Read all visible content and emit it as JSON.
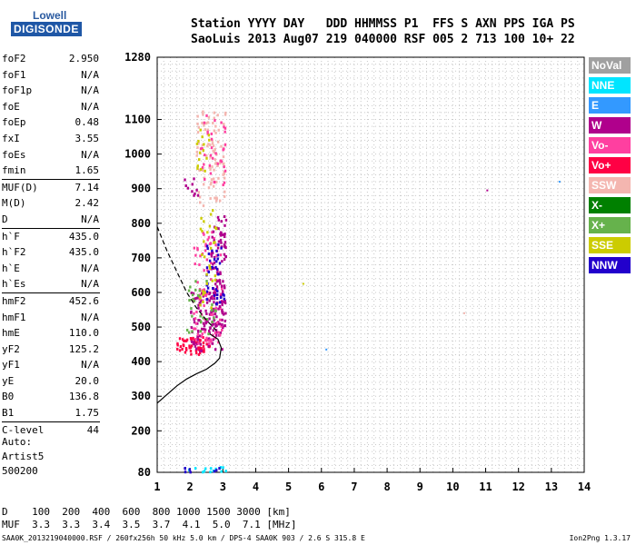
{
  "logo": {
    "line1": "Lowell",
    "line2": "DIGISONDE"
  },
  "header": {
    "line1": "Station YYYY DAY   DDD HHMMSS P1  FFS S AXN PPS IGA PS",
    "line2": "SaoLuis 2013 Aug07 219 040000 RSF 005 2 713 100 10+ 22"
  },
  "params_group1": [
    {
      "k": "foF2",
      "v": "2.950"
    },
    {
      "k": "foF1",
      "v": "N/A"
    },
    {
      "k": "foF1p",
      "v": "N/A"
    },
    {
      "k": "foE",
      "v": "N/A"
    },
    {
      "k": "foEp",
      "v": "0.48"
    },
    {
      "k": "fxI",
      "v": "3.55"
    },
    {
      "k": "foEs",
      "v": "N/A"
    },
    {
      "k": "fmin",
      "v": "1.65"
    }
  ],
  "params_group2": [
    {
      "k": "MUF(D)",
      "v": "7.14"
    },
    {
      "k": "M(D)",
      "v": "2.42"
    },
    {
      "k": "D",
      "v": "N/A"
    }
  ],
  "params_group3": [
    {
      "k": "h`F",
      "v": "435.0"
    },
    {
      "k": "h`F2",
      "v": "435.0"
    },
    {
      "k": "h`E",
      "v": "N/A"
    },
    {
      "k": "h`Es",
      "v": "N/A"
    }
  ],
  "params_group4": [
    {
      "k": "hmF2",
      "v": "452.6"
    },
    {
      "k": "hmF1",
      "v": "N/A"
    },
    {
      "k": "hmE",
      "v": "110.0"
    },
    {
      "k": "yF2",
      "v": "125.2"
    },
    {
      "k": "yF1",
      "v": "N/A"
    },
    {
      "k": "yE",
      "v": "20.0"
    },
    {
      "k": "B0",
      "v": "136.8"
    },
    {
      "k": "B1",
      "v": "1.75"
    }
  ],
  "params_group5": [
    {
      "k": "C-level",
      "v": "44"
    }
  ],
  "auto": {
    "line1": "Auto:",
    "line2": "Artist5",
    "line3": "500200"
  },
  "legend": [
    {
      "label": "NoVal",
      "color": "#a0a0a0"
    },
    {
      "label": "NNE",
      "color": "#00e5ff"
    },
    {
      "label": "E",
      "color": "#3399ff"
    },
    {
      "label": "W",
      "color": "#b0008c"
    },
    {
      "label": "Vo-",
      "color": "#ff3fa0"
    },
    {
      "label": "Vo+",
      "color": "#ff0044"
    },
    {
      "label": "SSW",
      "color": "#f4b6b0"
    },
    {
      "label": "X-",
      "color": "#008000"
    },
    {
      "label": "X+",
      "color": "#66b24c"
    },
    {
      "label": "SSE",
      "color": "#cccc00"
    },
    {
      "label": "NNW",
      "color": "#2200cc"
    }
  ],
  "bottom": {
    "d_row": "D    100  200  400  600  800 1000 1500 3000 [km]",
    "muf_row": "MUF  3.3  3.3  3.4  3.5  3.7  4.1  5.0  7.1 [MHz]"
  },
  "footer": {
    "text": "SAA0K_2013219040000.RSF / 260fx256h 50 kHz 5.0 km / DPS-4 SAA0K 903 / 2.6 S 315.8 E",
    "version": "Ion2Png 1.3.17"
  },
  "chart_data": {
    "type": "scatter",
    "xlim": [
      1,
      14
    ],
    "ylim": [
      80,
      1280
    ],
    "x_ticks": [
      1,
      2,
      3,
      4,
      5,
      6,
      7,
      8,
      9,
      10,
      11,
      12,
      13,
      14
    ],
    "y_ticks": [
      80,
      200,
      300,
      400,
      500,
      600,
      700,
      800,
      900,
      1000,
      1100,
      1280
    ],
    "grid": true,
    "profile_curve": [
      [
        1.0,
        280
      ],
      [
        1.3,
        305
      ],
      [
        1.6,
        330
      ],
      [
        1.9,
        350
      ],
      [
        2.2,
        365
      ],
      [
        2.5,
        378
      ],
      [
        2.75,
        395
      ],
      [
        2.9,
        410
      ],
      [
        2.95,
        440
      ],
      [
        2.85,
        465
      ],
      [
        2.6,
        480
      ]
    ],
    "dashed_curve": [
      [
        1.0,
        790
      ],
      [
        1.3,
        720
      ],
      [
        1.6,
        660
      ],
      [
        1.9,
        600
      ],
      [
        2.2,
        555
      ],
      [
        2.5,
        520
      ],
      [
        2.8,
        490
      ]
    ],
    "clusters": [
      {
        "color": "#ff0044",
        "x": [
          1.6,
          2.6
        ],
        "y": [
          420,
          470
        ],
        "n": 60
      },
      {
        "color": "#b0008c",
        "x": [
          2.0,
          3.0
        ],
        "y": [
          430,
          600
        ],
        "n": 110
      },
      {
        "color": "#ff3fa0",
        "x": [
          2.1,
          3.0
        ],
        "y": [
          450,
          780
        ],
        "n": 90
      },
      {
        "color": "#b0008c",
        "x": [
          2.6,
          3.1
        ],
        "y": [
          500,
          820
        ],
        "n": 90
      },
      {
        "color": "#2200cc",
        "x": [
          2.5,
          3.1
        ],
        "y": [
          560,
          750
        ],
        "n": 40
      },
      {
        "color": "#66b24c",
        "x": [
          1.9,
          2.8
        ],
        "y": [
          480,
          650
        ],
        "n": 30
      },
      {
        "color": "#cccc00",
        "x": [
          2.3,
          2.8
        ],
        "y": [
          550,
          850
        ],
        "n": 30
      },
      {
        "color": "#f4b6b0",
        "x": [
          2.2,
          3.1
        ],
        "y": [
          850,
          1130
        ],
        "n": 90
      },
      {
        "color": "#ff3fa0",
        "x": [
          2.3,
          3.1
        ],
        "y": [
          900,
          1120
        ],
        "n": 35
      },
      {
        "color": "#cccc00",
        "x": [
          2.2,
          2.6
        ],
        "y": [
          950,
          1080
        ],
        "n": 15
      },
      {
        "color": "#b0008c",
        "x": [
          1.8,
          2.3
        ],
        "y": [
          880,
          930
        ],
        "n": 10
      },
      {
        "color": "#00e5ff",
        "x": [
          1.7,
          3.2
        ],
        "y": [
          80,
          95
        ],
        "n": 14
      },
      {
        "color": "#2200cc",
        "x": [
          1.8,
          3.0
        ],
        "y": [
          80,
          95
        ],
        "n": 8
      }
    ],
    "outliers": [
      {
        "x": 5.45,
        "y": 625,
        "color": "#cccc00"
      },
      {
        "x": 6.15,
        "y": 435,
        "color": "#3399ff"
      },
      {
        "x": 10.35,
        "y": 540,
        "color": "#f4b6b0"
      },
      {
        "x": 11.05,
        "y": 895,
        "color": "#b0008c"
      },
      {
        "x": 13.25,
        "y": 920,
        "color": "#3399ff"
      }
    ]
  }
}
